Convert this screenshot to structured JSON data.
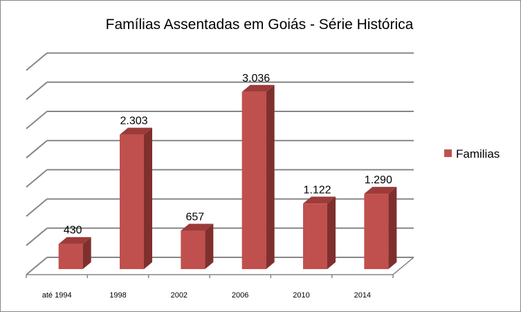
{
  "chart_data": {
    "type": "bar",
    "title": "Famílias Assentadas em Goiás - Série Histórica",
    "categories": [
      "até 1994",
      "1998",
      "2002",
      "2006",
      "2010",
      "2014"
    ],
    "series": [
      {
        "name": "Familias",
        "values": [
          430,
          2303,
          657,
          3036,
          1122,
          1290
        ],
        "value_labels": [
          "430",
          "2.303",
          "657",
          "3.036",
          "1.122",
          "1.290"
        ],
        "color": "#c0504d"
      }
    ],
    "ylim": [
      0,
      3500
    ],
    "grid": true,
    "legend_position": "right",
    "style_3d": true
  }
}
